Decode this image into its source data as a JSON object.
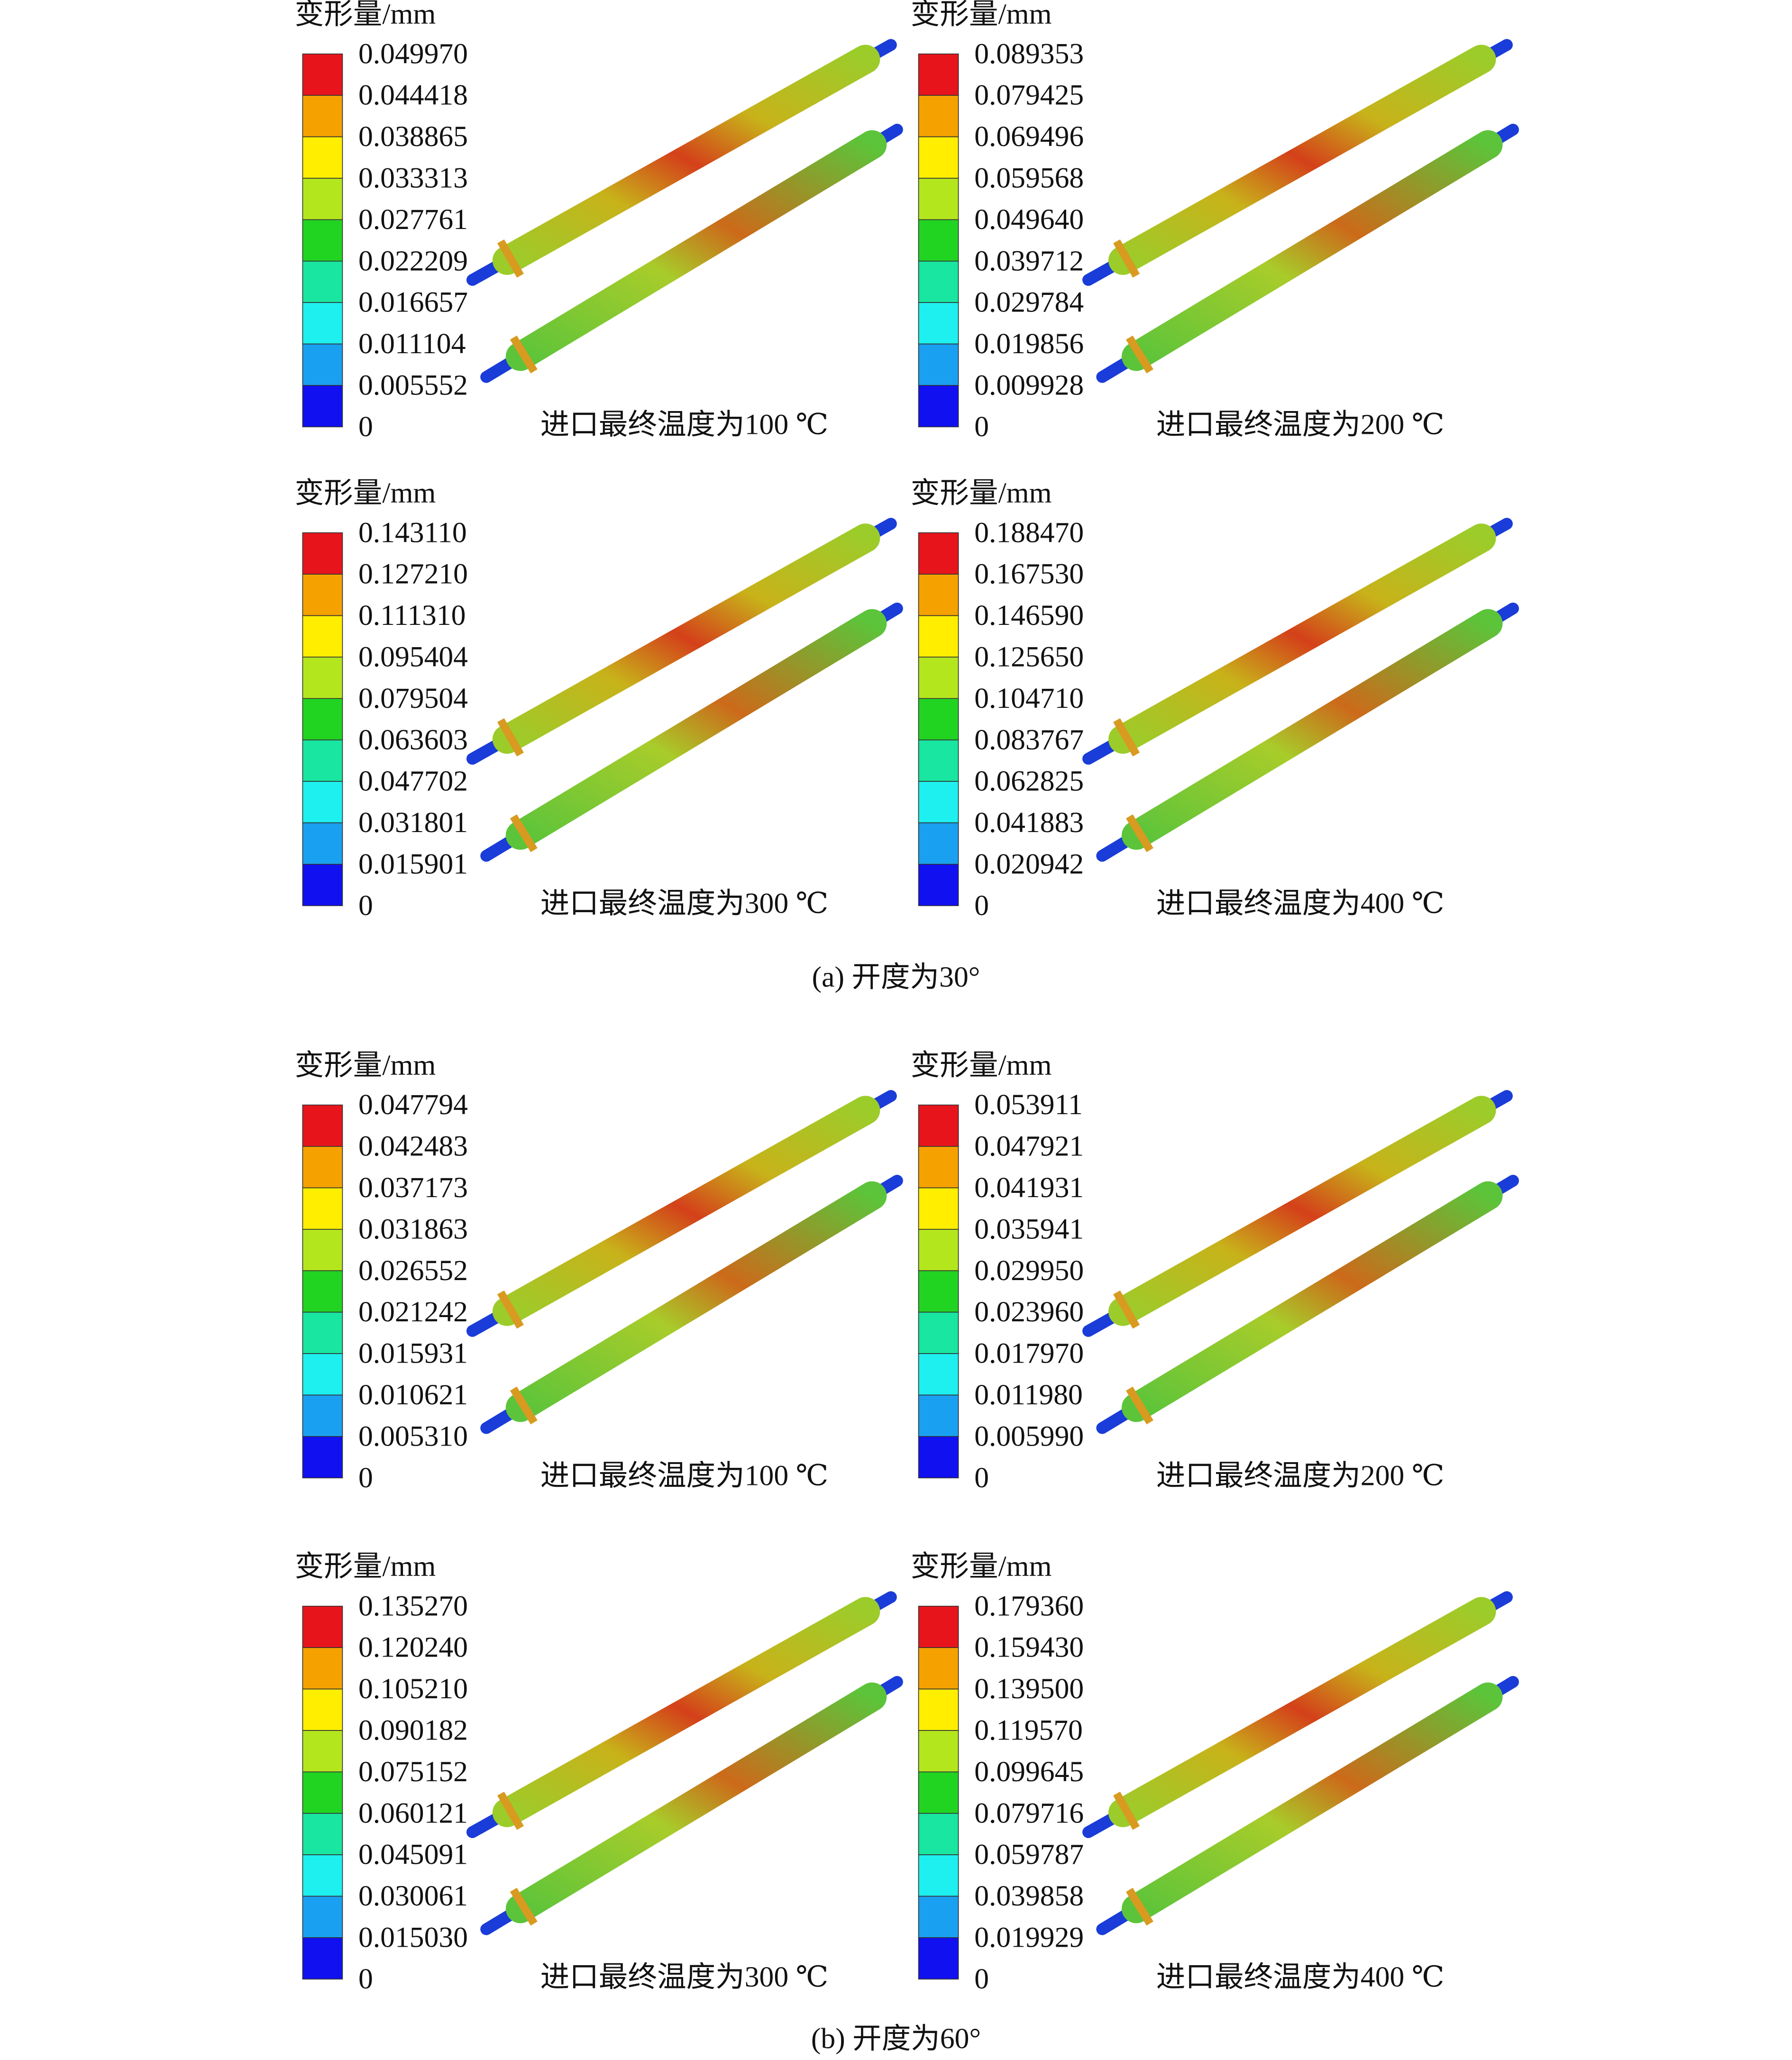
{
  "groups": [
    {
      "caption": "(a) 开度为30°",
      "panels": [
        {
          "legend_title": "变形量/mm",
          "levels": [
            "0.049970",
            "0.044418",
            "0.038865",
            "0.033313",
            "0.027761",
            "0.022209",
            "0.016657",
            "0.011104",
            "0.005552",
            "0"
          ],
          "label": "进口最终温度为100 ℃"
        },
        {
          "legend_title": "变形量/mm",
          "levels": [
            "0.089353",
            "0.079425",
            "0.069496",
            "0.059568",
            "0.049640",
            "0.039712",
            "0.029784",
            "0.019856",
            "0.009928",
            "0"
          ],
          "label": "进口最终温度为200 ℃"
        },
        {
          "legend_title": "变形量/mm",
          "levels": [
            "0.143110",
            "0.127210",
            "0.111310",
            "0.095404",
            "0.079504",
            "0.063603",
            "0.047702",
            "0.031801",
            "0.015901",
            "0"
          ],
          "label": "进口最终温度为300 ℃"
        },
        {
          "legend_title": "变形量/mm",
          "levels": [
            "0.188470",
            "0.167530",
            "0.146590",
            "0.125650",
            "0.104710",
            "0.083767",
            "0.062825",
            "0.041883",
            "0.020942",
            "0"
          ],
          "label": "进口最终温度为400 ℃"
        }
      ]
    },
    {
      "caption": "(b) 开度为60°",
      "panels": [
        {
          "legend_title": "变形量/mm",
          "levels": [
            "0.047794",
            "0.042483",
            "0.037173",
            "0.031863",
            "0.026552",
            "0.021242",
            "0.015931",
            "0.010621",
            "0.005310",
            "0"
          ],
          "label": "进口最终温度为100 ℃"
        },
        {
          "legend_title": "变形量/mm",
          "levels": [
            "0.053911",
            "0.047921",
            "0.041931",
            "0.035941",
            "0.029950",
            "0.023960",
            "0.017970",
            "0.011980",
            "0.005990",
            "0"
          ],
          "label": "进口最终温度为200 ℃"
        },
        {
          "legend_title": "变形量/mm",
          "levels": [
            "0.135270",
            "0.120240",
            "0.105210",
            "0.090182",
            "0.075152",
            "0.060121",
            "0.045091",
            "0.030061",
            "0.015030",
            "0"
          ],
          "label": "进口最终温度为300 ℃"
        },
        {
          "legend_title": "变形量/mm",
          "levels": [
            "0.179360",
            "0.159430",
            "0.139500",
            "0.119570",
            "0.099645",
            "0.079716",
            "0.059787",
            "0.039858",
            "0.019929",
            "0"
          ],
          "label": "进口最终温度为400 ℃"
        }
      ]
    }
  ]
}
